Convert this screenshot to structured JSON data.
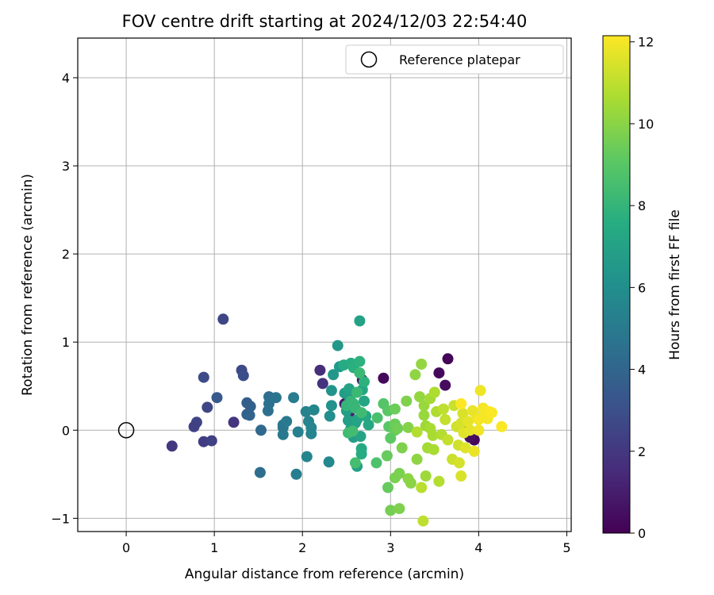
{
  "chart_data": {
    "type": "scatter",
    "title": "FOV centre drift starting at 2024/12/03 22:54:40",
    "xlabel": "Angular distance from reference (arcmin)",
    "ylabel": "Rotation from reference (arcmin)",
    "xlim": [
      -0.55,
      5.05
    ],
    "ylim": [
      -1.15,
      4.45
    ],
    "xticks": [
      0,
      1,
      2,
      3,
      4,
      5
    ],
    "yticks": [
      -1,
      0,
      1,
      2,
      3,
      4
    ],
    "grid": true,
    "legend": {
      "placement": "top-right",
      "entries": [
        "Reference platepar"
      ]
    },
    "reference_point": {
      "x": 0,
      "y": 0,
      "label": "Reference platepar"
    },
    "colorbar": {
      "label": "Hours from first FF file",
      "min": 0,
      "max": 12.15,
      "ticks": [
        0,
        2,
        4,
        6,
        8,
        10,
        12
      ],
      "colormap": "viridis"
    },
    "points": [
      [
        3.65,
        0.81,
        0.1
      ],
      [
        3.55,
        0.65,
        0.3
      ],
      [
        3.62,
        0.51,
        0.4
      ],
      [
        2.92,
        0.59,
        0.3
      ],
      [
        2.68,
        0.57,
        0.6
      ],
      [
        3.95,
        -0.11,
        0.2
      ],
      [
        3.9,
        -0.08,
        0.5
      ],
      [
        3.85,
        0.03,
        0.8
      ],
      [
        2.48,
        0.3,
        0.9
      ],
      [
        2.53,
        0.19,
        1.0
      ],
      [
        2.2,
        0.68,
        1.6
      ],
      [
        2.23,
        0.53,
        1.8
      ],
      [
        1.22,
        0.09,
        1.9
      ],
      [
        0.52,
        -0.18,
        2.0
      ],
      [
        0.88,
        -0.13,
        2.2
      ],
      [
        0.97,
        -0.12,
        2.4
      ],
      [
        0.8,
        0.09,
        2.5
      ],
      [
        0.92,
        0.26,
        2.6
      ],
      [
        0.88,
        0.6,
        2.8
      ],
      [
        1.31,
        0.68,
        2.7
      ],
      [
        1.33,
        0.62,
        2.9
      ],
      [
        1.1,
        1.26,
        2.6
      ],
      [
        0.77,
        0.04,
        2.4
      ],
      [
        1.03,
        0.37,
        3.4
      ],
      [
        1.37,
        0.31,
        3.6
      ],
      [
        1.41,
        0.27,
        3.7
      ],
      [
        1.37,
        0.18,
        3.8
      ],
      [
        1.4,
        0.17,
        3.9
      ],
      [
        1.53,
        0.0,
        4.2
      ],
      [
        1.52,
        -0.48,
        4.4
      ],
      [
        1.62,
        0.38,
        4.4
      ],
      [
        1.61,
        0.22,
        4.5
      ],
      [
        1.62,
        0.3,
        4.6
      ],
      [
        1.7,
        0.37,
        4.7
      ],
      [
        1.78,
        0.03,
        4.8
      ],
      [
        1.78,
        -0.05,
        4.9
      ],
      [
        1.78,
        0.06,
        4.8
      ],
      [
        1.82,
        0.1,
        5.0
      ],
      [
        1.9,
        0.37,
        5.1
      ],
      [
        1.93,
        -0.5,
        5.2
      ],
      [
        1.95,
        -0.02,
        5.3
      ],
      [
        2.04,
        0.21,
        5.4
      ],
      [
        2.05,
        -0.3,
        5.5
      ],
      [
        2.07,
        0.1,
        5.5
      ],
      [
        2.1,
        0.03,
        5.5
      ],
      [
        2.1,
        -0.04,
        5.5
      ],
      [
        2.13,
        0.23,
        5.6
      ],
      [
        2.3,
        -0.36,
        5.7
      ],
      [
        2.31,
        0.16,
        6.0
      ],
      [
        2.33,
        0.28,
        6.2
      ],
      [
        2.33,
        0.45,
        6.3
      ],
      [
        2.35,
        0.63,
        6.5
      ],
      [
        2.4,
        0.96,
        6.5
      ],
      [
        2.42,
        0.72,
        6.6
      ],
      [
        2.48,
        0.42,
        6.7
      ],
      [
        2.5,
        0.22,
        6.8
      ],
      [
        2.52,
        0.11,
        6.8
      ],
      [
        2.54,
        0.35,
        6.7
      ],
      [
        2.55,
        0.02,
        6.8
      ],
      [
        2.58,
        -0.08,
        6.8
      ],
      [
        2.6,
        0.08,
        6.9
      ],
      [
        2.62,
        -0.41,
        6.9
      ],
      [
        2.65,
        1.24,
        7.0
      ],
      [
        2.53,
        0.47,
        7.0
      ],
      [
        2.62,
        0.12,
        7.1
      ],
      [
        2.66,
        -0.07,
        7.1
      ],
      [
        2.68,
        0.46,
        7.2
      ],
      [
        2.7,
        0.33,
        7.2
      ],
      [
        2.72,
        0.16,
        7.3
      ],
      [
        2.75,
        0.06,
        7.3
      ],
      [
        2.67,
        -0.21,
        7.4
      ],
      [
        2.67,
        -0.27,
        7.5
      ],
      [
        2.47,
        0.74,
        7.5
      ],
      [
        2.55,
        0.76,
        7.6
      ],
      [
        2.58,
        0.71,
        7.7
      ],
      [
        2.65,
        0.78,
        7.8
      ],
      [
        2.7,
        0.55,
        7.8
      ],
      [
        2.5,
        0.28,
        8.0
      ],
      [
        2.55,
        0.33,
        8.0
      ],
      [
        2.58,
        0.3,
        8.1
      ],
      [
        2.6,
        0.25,
        8.1
      ],
      [
        2.62,
        0.43,
        8.2
      ],
      [
        2.65,
        0.65,
        8.2
      ],
      [
        2.67,
        0.2,
        8.3
      ],
      [
        2.52,
        -0.03,
        8.3
      ],
      [
        2.57,
        -0.01,
        8.4
      ],
      [
        2.6,
        -0.37,
        8.5
      ],
      [
        2.85,
        0.14,
        8.6
      ],
      [
        2.84,
        -0.37,
        8.7
      ],
      [
        2.92,
        0.3,
        8.9
      ],
      [
        2.97,
        0.22,
        9.0
      ],
      [
        2.98,
        0.04,
        9.0
      ],
      [
        3.0,
        -0.09,
        9.1
      ],
      [
        2.96,
        -0.29,
        9.3
      ],
      [
        2.97,
        -0.65,
        9.3
      ],
      [
        3.05,
        0.0,
        9.3
      ],
      [
        3.05,
        0.07,
        9.4
      ],
      [
        3.05,
        0.24,
        9.4
      ],
      [
        3.08,
        0.02,
        9.5
      ],
      [
        3.0,
        -0.91,
        9.6
      ],
      [
        3.1,
        -0.89,
        9.8
      ],
      [
        3.05,
        -0.54,
        9.7
      ],
      [
        3.1,
        -0.49,
        9.7
      ],
      [
        3.13,
        -0.2,
        9.8
      ],
      [
        3.18,
        0.33,
        9.8
      ],
      [
        3.2,
        0.03,
        9.9
      ],
      [
        3.2,
        -0.55,
        10.0
      ],
      [
        3.23,
        -0.6,
        10.0
      ],
      [
        3.28,
        0.63,
        10.1
      ],
      [
        3.3,
        -0.33,
        10.1
      ],
      [
        3.33,
        0.38,
        10.2
      ],
      [
        3.35,
        0.75,
        10.2
      ],
      [
        3.38,
        0.17,
        10.3
      ],
      [
        3.38,
        0.28,
        10.3
      ],
      [
        3.4,
        0.05,
        10.4
      ],
      [
        3.4,
        -0.52,
        10.4
      ],
      [
        3.42,
        -0.2,
        10.5
      ],
      [
        3.45,
        0.36,
        10.5
      ],
      [
        3.45,
        0.02,
        10.6
      ],
      [
        3.48,
        -0.06,
        10.6
      ],
      [
        3.49,
        -0.22,
        10.6
      ],
      [
        3.5,
        0.43,
        10.7
      ],
      [
        3.52,
        0.21,
        10.7
      ],
      [
        3.55,
        -0.58,
        10.8
      ],
      [
        3.58,
        -0.05,
        10.8
      ],
      [
        3.3,
        -0.02,
        10.8
      ],
      [
        3.35,
        -0.65,
        10.9
      ],
      [
        3.37,
        -1.03,
        11.0
      ],
      [
        3.6,
        0.24,
        11.0
      ],
      [
        3.62,
        0.12,
        11.1
      ],
      [
        3.65,
        -0.11,
        11.1
      ],
      [
        3.7,
        -0.33,
        11.2
      ],
      [
        3.72,
        0.28,
        11.2
      ],
      [
        3.75,
        0.04,
        11.3
      ],
      [
        3.77,
        -0.17,
        11.3
      ],
      [
        3.78,
        -0.37,
        11.4
      ],
      [
        3.8,
        0.08,
        11.4
      ],
      [
        3.8,
        -0.52,
        11.5
      ],
      [
        3.82,
        0.19,
        11.5
      ],
      [
        3.83,
        -0.03,
        11.6
      ],
      [
        3.85,
        -0.2,
        11.6
      ],
      [
        3.88,
        0.1,
        11.7
      ],
      [
        3.9,
        0.0,
        11.7
      ],
      [
        3.93,
        0.22,
        11.8
      ],
      [
        3.95,
        -0.24,
        11.8
      ],
      [
        3.98,
        0.14,
        11.8
      ],
      [
        4.0,
        0.0,
        11.9
      ],
      [
        4.02,
        0.45,
        11.9
      ],
      [
        4.05,
        0.25,
        12.0
      ],
      [
        4.08,
        0.17,
        12.0
      ],
      [
        4.1,
        0.13,
        12.0
      ],
      [
        4.12,
        0.21,
        12.1
      ],
      [
        4.15,
        0.2,
        12.1
      ],
      [
        4.26,
        0.04,
        12.1
      ],
      [
        3.8,
        0.3,
        12.15
      ],
      [
        4.0,
        0.12,
        12.0
      ]
    ]
  }
}
